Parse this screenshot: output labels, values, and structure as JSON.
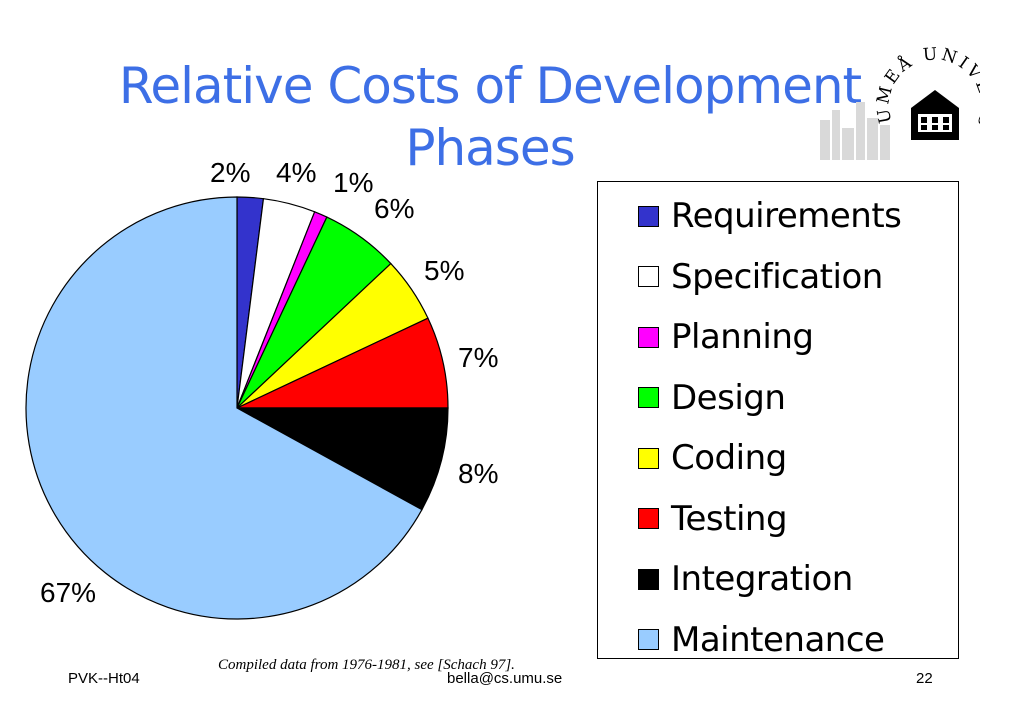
{
  "title_lines": [
    "Relative Costs of Development",
    "Phases"
  ],
  "caption": "Compiled data from 1976-1981, see [Schach 97].",
  "footer": {
    "left": "PVK--Ht04",
    "center": "bella@cs.umu.se",
    "right": "22"
  },
  "logo": {
    "text": "UMEÅ UNIVERSITET",
    "icon": "university-building-seal-icon"
  },
  "chart_data": {
    "type": "pie",
    "categories": [
      "Requirements",
      "Specification",
      "Planning",
      "Design",
      "Coding",
      "Testing",
      "Integration",
      "Maintenance"
    ],
    "values": [
      2,
      4,
      1,
      6,
      5,
      7,
      8,
      67
    ],
    "labels": [
      "2%",
      "4%",
      "1%",
      "6%",
      "5%",
      "7%",
      "8%",
      "67%"
    ],
    "colors": [
      "#3333cc",
      "#ffffff",
      "#ff00ff",
      "#00ff00",
      "#ffff00",
      "#ff0000",
      "#000000",
      "#99ccff"
    ],
    "legend_position": "right",
    "start": "12 o'clock",
    "direction": "clockwise"
  }
}
